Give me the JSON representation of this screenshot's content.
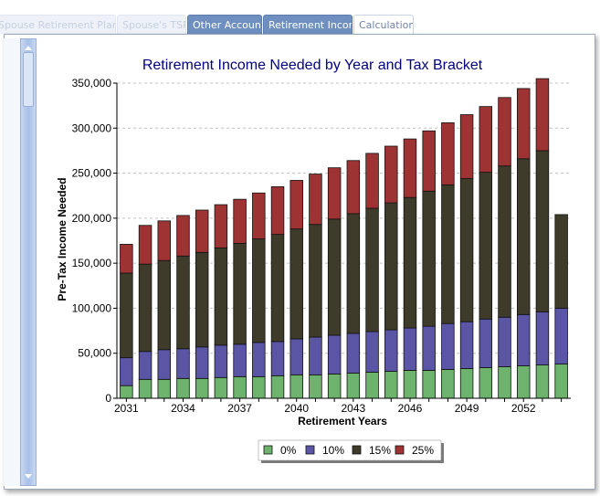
{
  "tabs": [
    {
      "label": "Spouse Retirement Plan",
      "state": "faded"
    },
    {
      "label": "Spouse's TSP",
      "state": "faded"
    },
    {
      "label": "Other Accounts",
      "state": "active"
    },
    {
      "label": "Retirement Income",
      "state": "active"
    },
    {
      "label": "Calculations",
      "state": "current"
    }
  ],
  "chart_data": {
    "type": "bar",
    "stacked": true,
    "title": "Retirement Income Needed by Year and Tax Bracket",
    "xlabel": "Retirement Years",
    "ylabel": "Pre-Tax Income Needed",
    "ylim": [
      0,
      350000
    ],
    "yticks": [
      "0",
      "50,000",
      "100,000",
      "150,000",
      "200,000",
      "250,000",
      "300,000",
      "350,000"
    ],
    "xtick_labels": [
      "2031",
      "2034",
      "2037",
      "2040",
      "2043",
      "2046",
      "2049",
      "2052"
    ],
    "grid": "horizontal dashed",
    "legend_position": "bottom",
    "categories": [
      2031,
      2032,
      2033,
      2034,
      2035,
      2036,
      2037,
      2038,
      2039,
      2040,
      2041,
      2042,
      2043,
      2044,
      2045,
      2046,
      2047,
      2048,
      2049,
      2050,
      2051,
      2052,
      2053,
      2054
    ],
    "series": [
      {
        "name": "0%",
        "color": "#6db36d",
        "values": [
          14000,
          21000,
          21000,
          22000,
          22000,
          23000,
          24000,
          24000,
          25000,
          26000,
          26000,
          27000,
          28000,
          29000,
          30000,
          31000,
          31000,
          32000,
          33000,
          34000,
          35000,
          36000,
          37000,
          38000
        ]
      },
      {
        "name": "10%",
        "color": "#5a55a4",
        "values": [
          31000,
          31000,
          33000,
          33000,
          35000,
          36000,
          36000,
          38000,
          38000,
          40000,
          42000,
          43000,
          44000,
          45000,
          46000,
          47000,
          49000,
          51000,
          52000,
          54000,
          55000,
          57000,
          59000,
          62000
        ]
      },
      {
        "name": "15%",
        "color": "#3e3b2b",
        "values": [
          94000,
          97000,
          99000,
          103000,
          105000,
          108000,
          112000,
          115000,
          119000,
          122000,
          125000,
          129000,
          133000,
          137000,
          141000,
          145000,
          150000,
          154000,
          159000,
          163000,
          168000,
          173000,
          179000,
          104000
        ]
      },
      {
        "name": "25%",
        "color": "#9e3333",
        "values": [
          32000,
          43000,
          44000,
          45000,
          47000,
          48000,
          49000,
          51000,
          53000,
          54000,
          56000,
          57000,
          59000,
          61000,
          63000,
          65000,
          67000,
          69000,
          71000,
          73000,
          76000,
          78000,
          80000,
          0
        ]
      }
    ]
  }
}
